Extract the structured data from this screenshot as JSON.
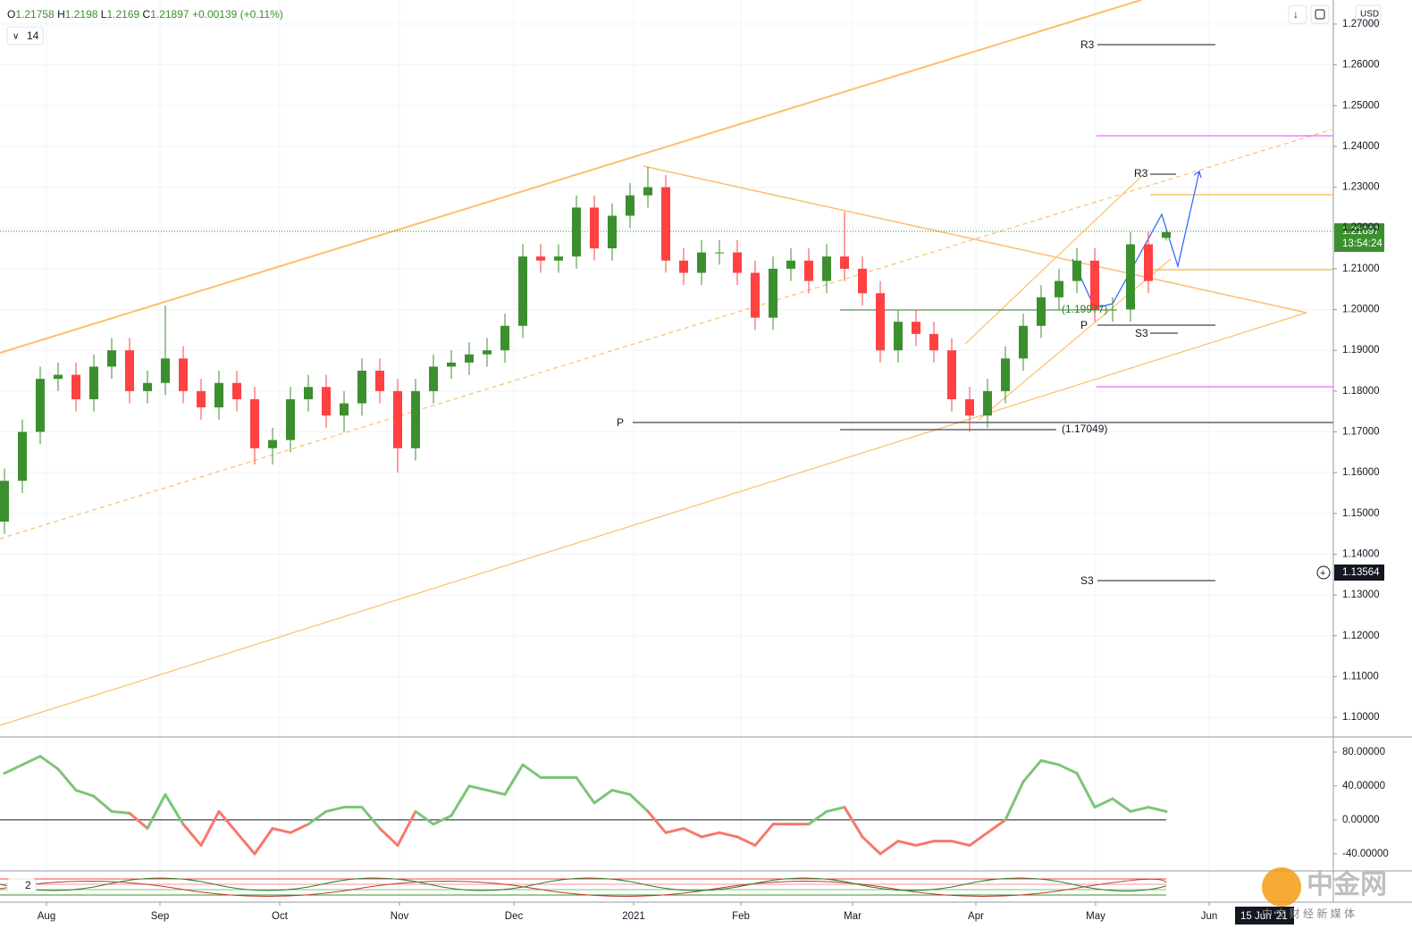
{
  "chart_data": {
    "type": "candlestick",
    "header": {
      "o": "O",
      "h": "H",
      "l": "L",
      "c": "C",
      "change": "+0.00139 (+0.11%)",
      "interval": "14"
    },
    "currency": "USD",
    "countdown": "13:54:24",
    "crosshair_price": "1.13564",
    "crosshair_date": "15 Jun '21",
    "up_color": "#3c8f2e",
    "down_color": "#ff4141",
    "open": [
      1.148,
      1.158,
      1.17,
      1.183,
      1.184,
      1.178,
      1.186,
      1.19,
      1.18,
      1.182,
      1.188,
      1.18,
      1.176,
      1.182,
      1.178,
      1.166,
      1.168,
      1.178,
      1.181,
      1.174,
      1.177,
      1.185,
      1.18,
      1.166,
      1.18,
      1.186,
      1.187,
      1.189,
      1.19,
      1.196,
      1.213,
      1.212,
      1.213,
      1.225,
      1.215,
      1.223,
      1.228,
      1.23,
      1.212,
      1.209,
      1.214,
      1.214,
      1.209,
      1.198,
      1.21,
      1.212,
      1.207,
      1.213,
      1.21,
      1.204,
      1.19,
      1.197,
      1.194,
      1.19,
      1.178,
      1.174,
      1.18,
      1.188,
      1.196,
      1.203,
      1.207,
      1.212,
      1.2,
      1.2,
      1.216,
      1.21758
    ],
    "high": [
      1.161,
      1.173,
      1.186,
      1.187,
      1.187,
      1.189,
      1.193,
      1.193,
      1.185,
      1.201,
      1.191,
      1.183,
      1.185,
      1.185,
      1.181,
      1.171,
      1.181,
      1.184,
      1.184,
      1.18,
      1.188,
      1.188,
      1.183,
      1.183,
      1.189,
      1.19,
      1.192,
      1.193,
      1.199,
      1.216,
      1.216,
      1.216,
      1.228,
      1.228,
      1.226,
      1.231,
      1.235,
      1.233,
      1.215,
      1.217,
      1.217,
      1.217,
      1.212,
      1.213,
      1.215,
      1.215,
      1.216,
      1.224,
      1.213,
      1.207,
      1.2,
      1.2,
      1.197,
      1.193,
      1.181,
      1.183,
      1.191,
      1.199,
      1.206,
      1.21,
      1.215,
      1.215,
      1.203,
      1.219,
      1.219,
      1.2198
    ],
    "low": [
      1.145,
      1.155,
      1.167,
      1.18,
      1.175,
      1.175,
      1.183,
      1.177,
      1.177,
      1.179,
      1.177,
      1.173,
      1.173,
      1.175,
      1.162,
      1.162,
      1.165,
      1.175,
      1.171,
      1.17,
      1.174,
      1.177,
      1.16,
      1.163,
      1.177,
      1.183,
      1.184,
      1.186,
      1.187,
      1.193,
      1.209,
      1.209,
      1.21,
      1.212,
      1.212,
      1.22,
      1.225,
      1.209,
      1.206,
      1.206,
      1.211,
      1.206,
      1.195,
      1.195,
      1.207,
      1.204,
      1.204,
      1.207,
      1.201,
      1.187,
      1.187,
      1.191,
      1.187,
      1.175,
      1.17,
      1.171,
      1.177,
      1.185,
      1.193,
      1.2,
      1.204,
      1.197,
      1.197,
      1.197,
      1.204,
      1.2169
    ],
    "close": [
      1.158,
      1.17,
      1.183,
      1.184,
      1.178,
      1.186,
      1.19,
      1.18,
      1.182,
      1.188,
      1.18,
      1.176,
      1.182,
      1.178,
      1.166,
      1.168,
      1.178,
      1.181,
      1.174,
      1.177,
      1.185,
      1.18,
      1.166,
      1.18,
      1.186,
      1.187,
      1.189,
      1.19,
      1.196,
      1.213,
      1.212,
      1.213,
      1.225,
      1.215,
      1.223,
      1.228,
      1.23,
      1.212,
      1.209,
      1.214,
      1.214,
      1.209,
      1.198,
      1.21,
      1.212,
      1.207,
      1.213,
      1.21,
      1.204,
      1.19,
      1.197,
      1.194,
      1.19,
      1.178,
      1.174,
      1.18,
      1.188,
      1.196,
      1.203,
      1.207,
      1.212,
      1.2,
      1.2,
      1.216,
      1.207,
      1.21897
    ],
    "xlim": [
      -0.25,
      74.25
    ],
    "xticks": [
      {
        "value": 2.35,
        "label": "Aug"
      },
      {
        "value": 8.7,
        "label": "Sep"
      },
      {
        "value": 15.4,
        "label": "Oct"
      },
      {
        "value": 22.1,
        "label": "Nov"
      },
      {
        "value": 28.5,
        "label": "Dec"
      },
      {
        "value": 35.2,
        "label": "2021"
      },
      {
        "value": 41.2,
        "label": "Feb"
      },
      {
        "value": 47.45,
        "label": "Mar"
      },
      {
        "value": 54.35,
        "label": "Apr"
      },
      {
        "value": 61.05,
        "label": "May"
      },
      {
        "value": 67.4,
        "label": "Jun"
      }
    ],
    "ylim": [
      1.0952,
      1.2759
    ],
    "yticks": [
      {
        "value": 1.1,
        "label": "1.10000"
      },
      {
        "value": 1.11,
        "label": "1.11000"
      },
      {
        "value": 1.12,
        "label": "1.12000"
      },
      {
        "value": 1.13,
        "label": "1.13000"
      },
      {
        "value": 1.14,
        "label": "1.14000"
      },
      {
        "value": 1.15,
        "label": "1.15000"
      },
      {
        "value": 1.16,
        "label": "1.16000"
      },
      {
        "value": 1.17,
        "label": "1.17000"
      },
      {
        "value": 1.18,
        "label": "1.18000"
      },
      {
        "value": 1.19,
        "label": "1.19000"
      },
      {
        "value": 1.2,
        "label": "1.20000"
      },
      {
        "value": 1.21,
        "label": "1.21000"
      },
      {
        "value": 1.22,
        "label": "1.22000"
      },
      {
        "value": 1.23,
        "label": "1.23000"
      },
      {
        "value": 1.24,
        "label": "1.24000"
      },
      {
        "value": 1.25,
        "label": "1.25000"
      },
      {
        "value": 1.26,
        "label": "1.26000"
      },
      {
        "value": 1.27,
        "label": "1.27000"
      }
    ],
    "grid": true,
    "oscillator": {
      "values": [
        55,
        65,
        75,
        60,
        35,
        28,
        10,
        8,
        -10,
        30,
        -5,
        -30,
        10,
        -15,
        -40,
        -10,
        -15,
        -5,
        10,
        15,
        15,
        -10,
        -30,
        10,
        -5,
        5,
        40,
        35,
        30,
        65,
        50,
        50,
        50,
        20,
        35,
        30,
        10,
        -15,
        -10,
        -20,
        -15,
        -20,
        -30,
        -5,
        -5,
        -5,
        10,
        15,
        -20,
        -40,
        -25,
        -30,
        -25,
        -25,
        -30,
        -15,
        0,
        45,
        70,
        65,
        55,
        15,
        25,
        10,
        15,
        10
      ],
      "pos_color": "#7cc576",
      "neg_color": "#f7786b",
      "ylim": [
        -58,
        94.7
      ],
      "yticks": [
        {
          "value": 80,
          "label": "80.00000"
        },
        {
          "value": 40,
          "label": "40.00000"
        },
        {
          "value": 0,
          "label": "0.00000"
        },
        {
          "value": -40,
          "label": "-40.00000"
        }
      ]
    },
    "lower_panel_label": "2",
    "annotations": {
      "r3_a": "R3",
      "r3_b": "R3",
      "p_a": "P",
      "p_b": "P",
      "s3_a": "S3",
      "s3_b": "S3",
      "level_a": "(1.19977)",
      "level_b": "(1.17049)"
    },
    "watermark": {
      "brand": "中金网",
      "tagline": "中 文 财 经 新 媒 体"
    }
  }
}
